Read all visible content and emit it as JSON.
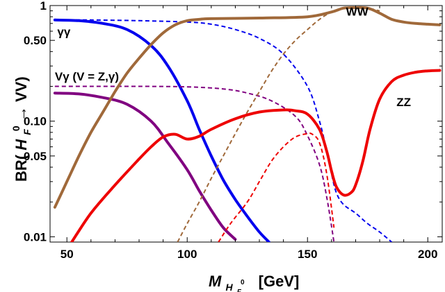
{
  "chart_data": {
    "type": "line",
    "xlabel": {
      "main": "M",
      "sub1": "H",
      "sub2": "F",
      "sup": "0",
      "unit": "[GeV]"
    },
    "ylabel": {
      "pre": "BR(",
      "h": "H",
      "sub": "F",
      "sup": "0",
      "post": " → VV)"
    },
    "xlim": [
      43,
      206
    ],
    "ylim": [
      0.009,
      1.0
    ],
    "yscale": "log",
    "x_ticks": [
      50,
      100,
      150,
      200
    ],
    "x_tick_labels": [
      "50",
      "100",
      "150",
      "200"
    ],
    "y_ticks": [
      0.01,
      0.05,
      0.1,
      0.5,
      1
    ],
    "y_tick_labels": [
      "0.01",
      "0.05",
      "0.10",
      "0.50",
      "1"
    ],
    "annotations": [
      {
        "text": "γγ",
        "x": 46,
        "y": 0.55
      },
      {
        "text": "Vγ (V = Z,γ)",
        "x": 45,
        "y": 0.225
      },
      {
        "text": "WW",
        "x": 166,
        "y": 0.82
      },
      {
        "text": "ZZ",
        "x": 187,
        "y": 0.135
      }
    ],
    "series": [
      {
        "key": "gg",
        "color": "#0000ee",
        "style": "solid",
        "x": [
          45,
          55,
          65,
          75,
          85,
          92,
          100,
          105,
          110,
          115,
          120,
          125,
          130,
          134
        ],
        "y": [
          0.75,
          0.74,
          0.7,
          0.62,
          0.45,
          0.3,
          0.15,
          0.085,
          0.05,
          0.031,
          0.021,
          0.015,
          0.011,
          0.009
        ]
      },
      {
        "key": "gg-dashed",
        "color": "#0000ee",
        "style": "dashed",
        "x": [
          45,
          60,
          80,
          100,
          110,
          120,
          130,
          140,
          150,
          155,
          158,
          160,
          162,
          165,
          170,
          175,
          180,
          185
        ],
        "y": [
          0.75,
          0.75,
          0.74,
          0.72,
          0.69,
          0.62,
          0.52,
          0.38,
          0.2,
          0.1,
          0.055,
          0.035,
          0.024,
          0.019,
          0.016,
          0.013,
          0.011,
          0.009
        ]
      },
      {
        "key": "vg",
        "color": "#800080",
        "style": "solid",
        "x": [
          45,
          55,
          65,
          75,
          85,
          92,
          100,
          105,
          110,
          115,
          120
        ],
        "y": [
          0.175,
          0.172,
          0.16,
          0.14,
          0.1,
          0.065,
          0.038,
          0.025,
          0.017,
          0.012,
          0.0095
        ]
      },
      {
        "key": "vg-dashed",
        "color": "#800080",
        "style": "dashed",
        "x": [
          45,
          60,
          80,
          100,
          115,
          125,
          135,
          145,
          150,
          155,
          158,
          161
        ],
        "y": [
          0.2,
          0.2,
          0.2,
          0.198,
          0.19,
          0.175,
          0.15,
          0.11,
          0.075,
          0.042,
          0.022,
          0.009
        ]
      },
      {
        "key": "ww",
        "color": "#a0693a",
        "style": "solid",
        "x": [
          45,
          50,
          55,
          60,
          65,
          70,
          75,
          80,
          85,
          90,
          95,
          100,
          105,
          110,
          130,
          150,
          160,
          165,
          170,
          175,
          180,
          185,
          190,
          195,
          200,
          205
        ],
        "y": [
          0.018,
          0.03,
          0.05,
          0.08,
          0.12,
          0.18,
          0.26,
          0.35,
          0.46,
          0.58,
          0.68,
          0.74,
          0.76,
          0.77,
          0.78,
          0.8,
          0.88,
          0.95,
          0.96,
          0.95,
          0.86,
          0.76,
          0.72,
          0.7,
          0.69,
          0.68
        ]
      },
      {
        "key": "ww-dashed",
        "color": "#a0693a",
        "style": "dashed",
        "x": [
          96,
          100,
          105,
          110,
          115,
          120,
          125,
          130,
          135,
          140,
          145,
          150,
          155,
          160,
          165,
          170,
          175,
          180
        ],
        "y": [
          0.009,
          0.013,
          0.02,
          0.032,
          0.05,
          0.078,
          0.12,
          0.18,
          0.27,
          0.38,
          0.5,
          0.62,
          0.76,
          0.88,
          0.95,
          0.97,
          0.95,
          0.9
        ]
      },
      {
        "key": "zz",
        "color": "#ee0000",
        "style": "solid",
        "x": [
          52,
          60,
          70,
          80,
          85,
          90,
          95,
          100,
          105,
          110,
          120,
          130,
          140,
          145,
          150,
          155,
          158,
          160,
          162,
          165,
          168,
          170,
          173,
          176,
          180,
          185,
          190,
          195,
          200,
          205
        ],
        "y": [
          0.009,
          0.016,
          0.028,
          0.047,
          0.06,
          0.073,
          0.077,
          0.07,
          0.074,
          0.085,
          0.105,
          0.12,
          0.125,
          0.123,
          0.115,
          0.085,
          0.055,
          0.037,
          0.027,
          0.023,
          0.024,
          0.028,
          0.045,
          0.085,
          0.155,
          0.22,
          0.25,
          0.265,
          0.272,
          0.275
        ]
      },
      {
        "key": "zz-dashed",
        "color": "#ee0000",
        "style": "dashed",
        "x": [
          113,
          118,
          125,
          130,
          135,
          140,
          145,
          150,
          152,
          155,
          158,
          161
        ],
        "y": [
          0.009,
          0.013,
          0.02,
          0.03,
          0.045,
          0.06,
          0.073,
          0.078,
          0.077,
          0.065,
          0.035,
          0.012
        ]
      }
    ]
  }
}
